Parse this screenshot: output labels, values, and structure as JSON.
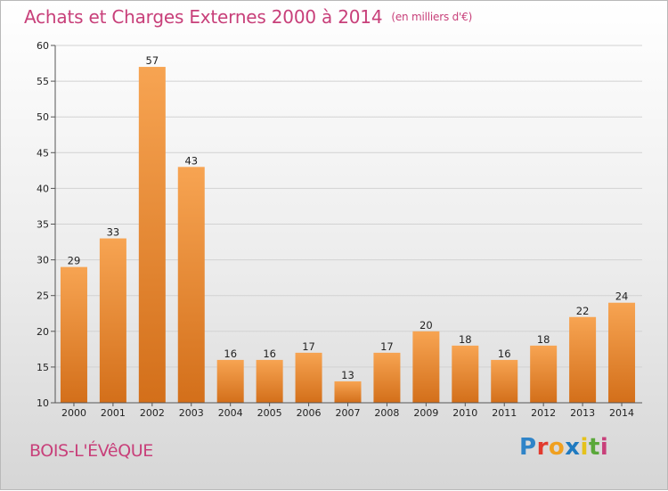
{
  "chart_data": {
    "type": "bar",
    "title": "Achats et Charges Externes 2000 à 2014",
    "subtitle": "(en milliers d'€)",
    "categories": [
      "2000",
      "2001",
      "2002",
      "2003",
      "2004",
      "2005",
      "2006",
      "2007",
      "2008",
      "2009",
      "2010",
      "2011",
      "2012",
      "2013",
      "2014"
    ],
    "values": [
      29,
      33,
      57,
      43,
      16,
      16,
      17,
      13,
      17,
      20,
      18,
      16,
      18,
      22,
      24
    ],
    "ylim": [
      10,
      60
    ],
    "yticks": [
      10,
      15,
      20,
      25,
      30,
      35,
      40,
      45,
      50,
      55,
      60
    ],
    "grid": true,
    "bar_color_top": "#f7a452",
    "bar_color_bottom": "#d36f1a"
  },
  "place_name": "BOIS-L'ÉVêQUE",
  "logo": {
    "letters": [
      "P",
      "r",
      "o",
      "x",
      "i",
      "t",
      "i"
    ]
  }
}
